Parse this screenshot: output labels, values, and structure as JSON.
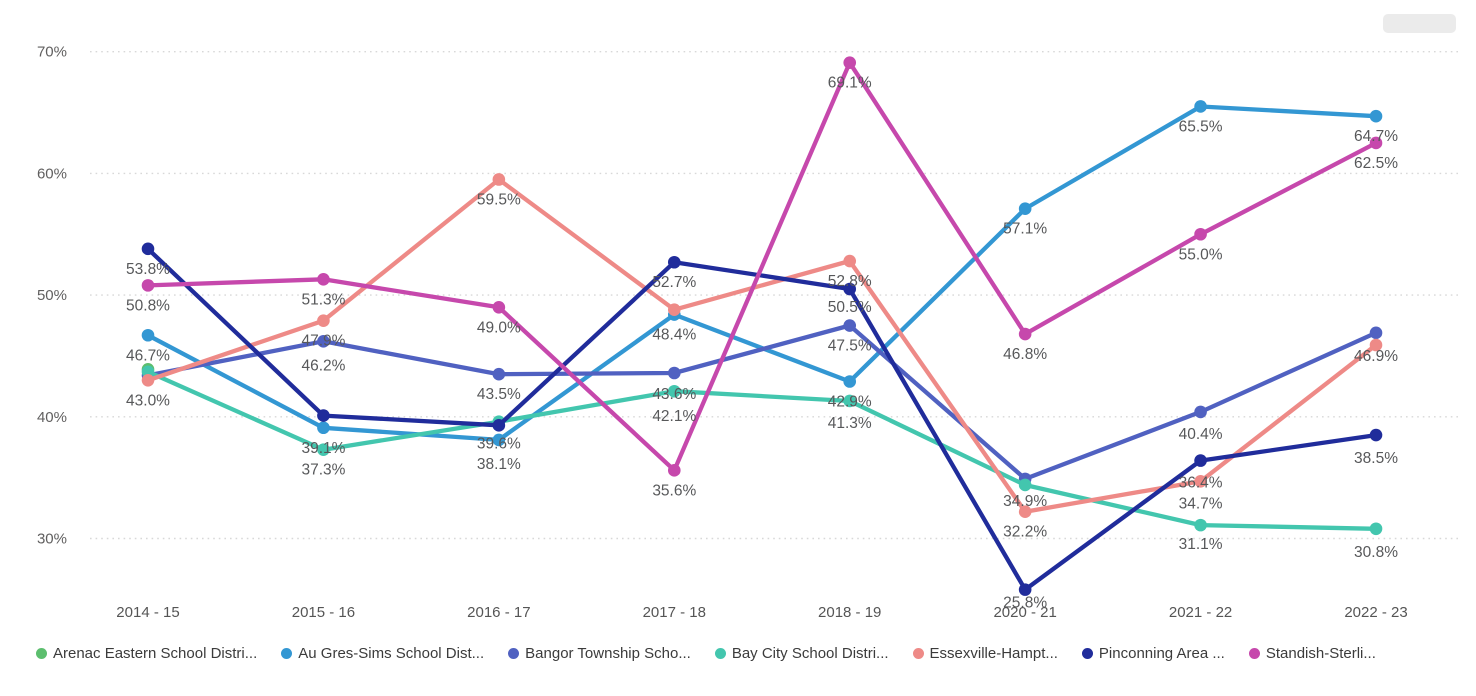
{
  "chart_data": {
    "type": "line",
    "title": "",
    "categories": [
      "2014 - 15",
      "2015 - 16",
      "2016 - 17",
      "2017 - 18",
      "2018 - 19",
      "2020 - 21",
      "2021 - 22",
      "2022 - 23"
    ],
    "y_axis": {
      "tick_labels": [
        "70%",
        "60%",
        "50%",
        "40%",
        "30%"
      ],
      "tick_values": [
        70,
        60,
        50,
        40,
        30
      ],
      "range": [
        24,
        72
      ],
      "grid": "dotted-horizontal"
    },
    "legend_position": "bottom",
    "series": [
      {
        "name": "Arenac Eastern School Distri...",
        "color": "#5cbe6e",
        "values": [
          43.9,
          null,
          null,
          null,
          null,
          null,
          null,
          null
        ]
      },
      {
        "name": "Au Gres-Sims School Dist...",
        "color": "#3397d3",
        "values": [
          46.7,
          39.1,
          38.1,
          48.4,
          42.9,
          57.1,
          65.5,
          64.7
        ]
      },
      {
        "name": "Bangor Township Scho...",
        "color": "#5061c1",
        "values": [
          43.4,
          46.2,
          43.5,
          43.6,
          47.5,
          34.9,
          40.4,
          46.9
        ]
      },
      {
        "name": "Bay City School Distri...",
        "color": "#43c6ae",
        "values": [
          43.7,
          37.3,
          39.6,
          42.1,
          41.3,
          34.4,
          31.1,
          30.8
        ]
      },
      {
        "name": "Essexville-Hampt...",
        "color": "#ee8a87",
        "values": [
          43.0,
          47.9,
          59.5,
          48.8,
          52.8,
          32.2,
          34.7,
          45.9
        ]
      },
      {
        "name": "Pinconning Area ...",
        "color": "#202c9b",
        "values": [
          53.8,
          40.1,
          39.3,
          52.7,
          50.5,
          25.8,
          36.4,
          38.5
        ]
      },
      {
        "name": "Standish-Sterli...",
        "color": "#c648ac",
        "values": [
          50.8,
          51.3,
          49.0,
          35.6,
          69.1,
          46.8,
          55.0,
          62.5
        ]
      }
    ],
    "point_labels": [
      {
        "s": 5,
        "x": 0,
        "t": "53.8%"
      },
      {
        "s": 6,
        "x": 0,
        "t": "50.8%"
      },
      {
        "s": 1,
        "x": 0,
        "t": "46.7%"
      },
      {
        "s": 4,
        "x": 0,
        "t": "43.0%"
      },
      {
        "s": 6,
        "x": 1,
        "t": "51.3%"
      },
      {
        "s": 4,
        "x": 1,
        "t": "47.9%"
      },
      {
        "s": 2,
        "x": 1,
        "t": "46.2%",
        "dy": 29
      },
      {
        "s": 1,
        "x": 1,
        "t": "39.1%"
      },
      {
        "s": 3,
        "x": 1,
        "t": "37.3%"
      },
      {
        "s": 4,
        "x": 2,
        "t": "59.5%"
      },
      {
        "s": 6,
        "x": 2,
        "t": "49.0%"
      },
      {
        "s": 2,
        "x": 2,
        "t": "43.5%"
      },
      {
        "s": 3,
        "x": 2,
        "t": "39.6%",
        "dy": 27
      },
      {
        "s": 1,
        "x": 2,
        "t": "38.1%",
        "dy": 29
      },
      {
        "s": 5,
        "x": 3,
        "t": "52.7%"
      },
      {
        "s": 1,
        "x": 3,
        "t": "48.4%"
      },
      {
        "s": 2,
        "x": 3,
        "t": "43.6%",
        "dy": 26
      },
      {
        "s": 3,
        "x": 3,
        "t": "42.1%",
        "dy": 30
      },
      {
        "s": 6,
        "x": 3,
        "t": "35.6%"
      },
      {
        "s": 6,
        "x": 4,
        "t": "69.1%"
      },
      {
        "s": 4,
        "x": 4,
        "t": "52.8%"
      },
      {
        "s": 5,
        "x": 4,
        "t": "50.5%",
        "dy": 23
      },
      {
        "s": 2,
        "x": 4,
        "t": "47.5%"
      },
      {
        "s": 1,
        "x": 4,
        "t": "42.9%"
      },
      {
        "s": 3,
        "x": 4,
        "t": "41.3%",
        "dy": 27
      },
      {
        "s": 1,
        "x": 5,
        "t": "57.1%"
      },
      {
        "s": 6,
        "x": 5,
        "t": "46.8%"
      },
      {
        "s": 2,
        "x": 5,
        "t": "34.9%",
        "dy": 27
      },
      {
        "s": 4,
        "x": 5,
        "t": "32.2%"
      },
      {
        "s": 5,
        "x": 5,
        "t": "25.8%",
        "dy": 18
      },
      {
        "s": 1,
        "x": 6,
        "t": "65.5%"
      },
      {
        "s": 6,
        "x": 6,
        "t": "55.0%"
      },
      {
        "s": 2,
        "x": 6,
        "t": "40.4%",
        "dy": 27
      },
      {
        "s": 5,
        "x": 6,
        "t": "36.4%",
        "dy": 27
      },
      {
        "s": 4,
        "x": 6,
        "t": "34.7%",
        "dy": 27
      },
      {
        "s": 3,
        "x": 6,
        "t": "31.1%",
        "dy": 24
      },
      {
        "s": 1,
        "x": 7,
        "t": "64.7%"
      },
      {
        "s": 6,
        "x": 7,
        "t": "62.5%"
      },
      {
        "s": 2,
        "x": 7,
        "t": "46.9%",
        "dy": 28
      },
      {
        "s": 5,
        "x": 7,
        "t": "38.5%",
        "dy": 28
      },
      {
        "s": 3,
        "x": 7,
        "t": "30.8%",
        "dy": 28
      }
    ]
  },
  "legend": {
    "items": [
      {
        "label": "Arenac Eastern School Distri...",
        "color": "#5cbe6e"
      },
      {
        "label": "Au Gres-Sims School Dist...",
        "color": "#3397d3"
      },
      {
        "label": "Bangor Township Scho...",
        "color": "#5061c1"
      },
      {
        "label": "Bay City School Distri...",
        "color": "#43c6ae"
      },
      {
        "label": "Essexville-Hampt...",
        "color": "#ee8a87"
      },
      {
        "label": "Pinconning Area ...",
        "color": "#202c9b"
      },
      {
        "label": "Standish-Sterli...",
        "color": "#c648ac"
      }
    ]
  }
}
